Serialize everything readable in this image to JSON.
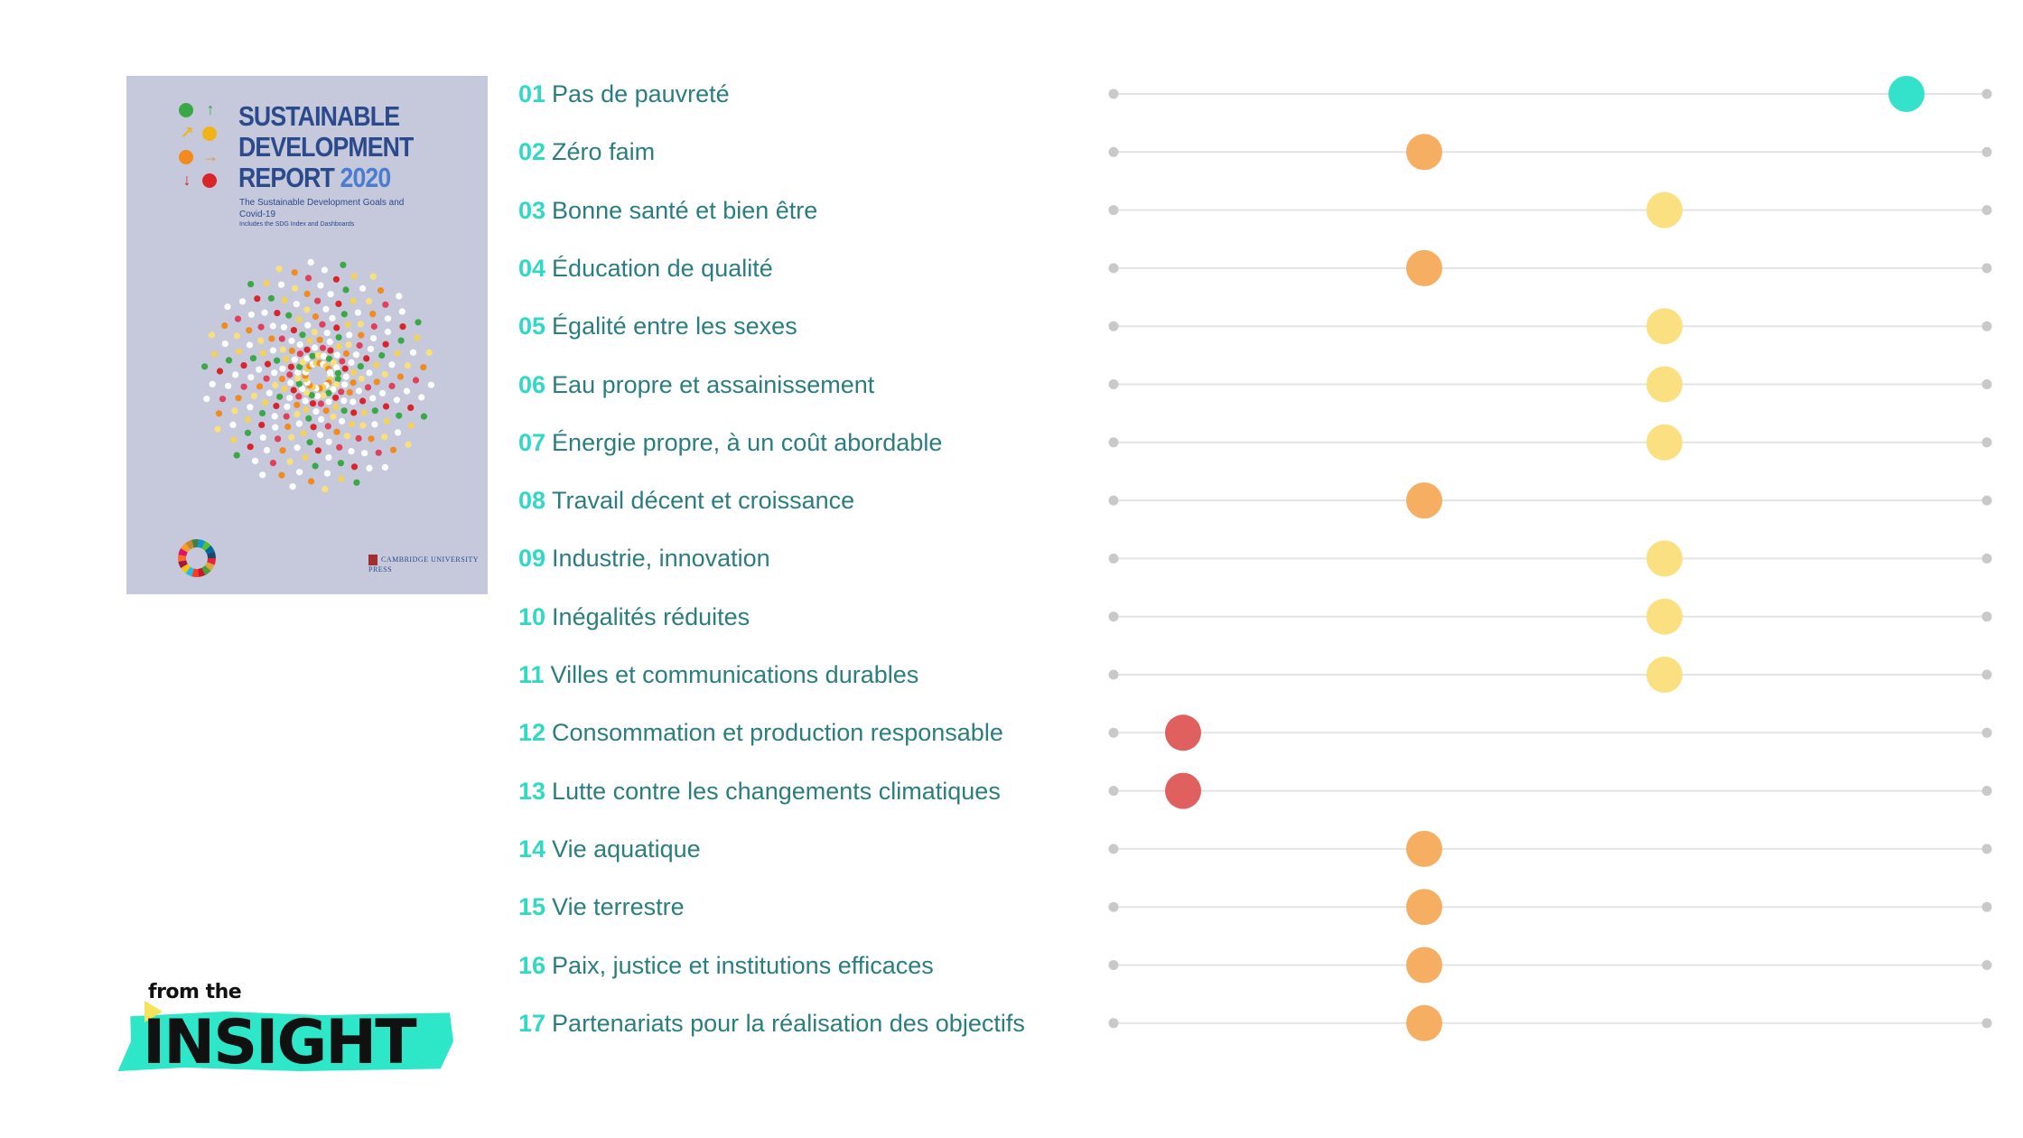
{
  "cover": {
    "title_line1": "SUSTAINABLE",
    "title_line2": "DEVELOPMENT",
    "title_line3": "REPORT",
    "title_year": "2020",
    "subtitle": "The Sustainable Development Goals and Covid-19",
    "small_text": "Includes the SDG Index and Dashboards",
    "publisher": "CAMBRIDGE UNIVERSITY PRESS"
  },
  "logo": {
    "from_text": "from the",
    "main_text": "INSIGHT"
  },
  "colors": {
    "label_text": "#2a7e80",
    "label_number": "#2fd9c4",
    "track": "#e3e3e3",
    "track_end": "#c9c9c9",
    "level_teal": "#34e2cc",
    "level_yellow": "#fbe081",
    "level_orange": "#f6ae62",
    "level_red": "#e0605f"
  },
  "chart_data": {
    "type": "scatter",
    "title": "",
    "xlabel": "",
    "ylabel": "",
    "x_scale": "4 ordinal levels (dot color encodes level)",
    "xlim": [
      1,
      4
    ],
    "rows": [
      {
        "num": "01",
        "label": "Pas de pauvreté",
        "level": 4,
        "color": "#34e2cc"
      },
      {
        "num": "02",
        "label": "Zéro faim",
        "level": 2,
        "color": "#f6ae62"
      },
      {
        "num": "03",
        "label": "Bonne santé et bien être",
        "level": 3,
        "color": "#fbe081"
      },
      {
        "num": "04",
        "label": "Éducation de qualité",
        "level": 2,
        "color": "#f6ae62"
      },
      {
        "num": "05",
        "label": "Égalité entre les sexes",
        "level": 3,
        "color": "#fbe081"
      },
      {
        "num": "06",
        "label": "Eau propre et assainissement",
        "level": 3,
        "color": "#fbe081"
      },
      {
        "num": "07",
        "label": "Énergie propre, à un coût abordable",
        "level": 3,
        "color": "#fbe081"
      },
      {
        "num": "08",
        "label": "Travail décent et croissance",
        "level": 2,
        "color": "#f6ae62"
      },
      {
        "num": "09",
        "label": "Industrie, innovation",
        "level": 3,
        "color": "#fbe081"
      },
      {
        "num": "10",
        "label": "Inégalités réduites",
        "level": 3,
        "color": "#fbe081"
      },
      {
        "num": "11",
        "label": "Villes et communications durables",
        "level": 3,
        "color": "#fbe081"
      },
      {
        "num": "12",
        "label": "Consommation et production responsable",
        "level": 1,
        "color": "#e0605f"
      },
      {
        "num": "13",
        "label": "Lutte contre les changements climatiques",
        "level": 1,
        "color": "#e0605f"
      },
      {
        "num": "14",
        "label": "Vie aquatique",
        "level": 2,
        "color": "#f6ae62"
      },
      {
        "num": "15",
        "label": "Vie terrestre",
        "level": 2,
        "color": "#f6ae62"
      },
      {
        "num": "16",
        "label": "Paix, justice et institutions efficaces",
        "level": 2,
        "color": "#f6ae62"
      },
      {
        "num": "17",
        "label": "Partenariats pour la réalisation des objectifs",
        "level": 2,
        "color": "#f6ae62"
      }
    ]
  }
}
